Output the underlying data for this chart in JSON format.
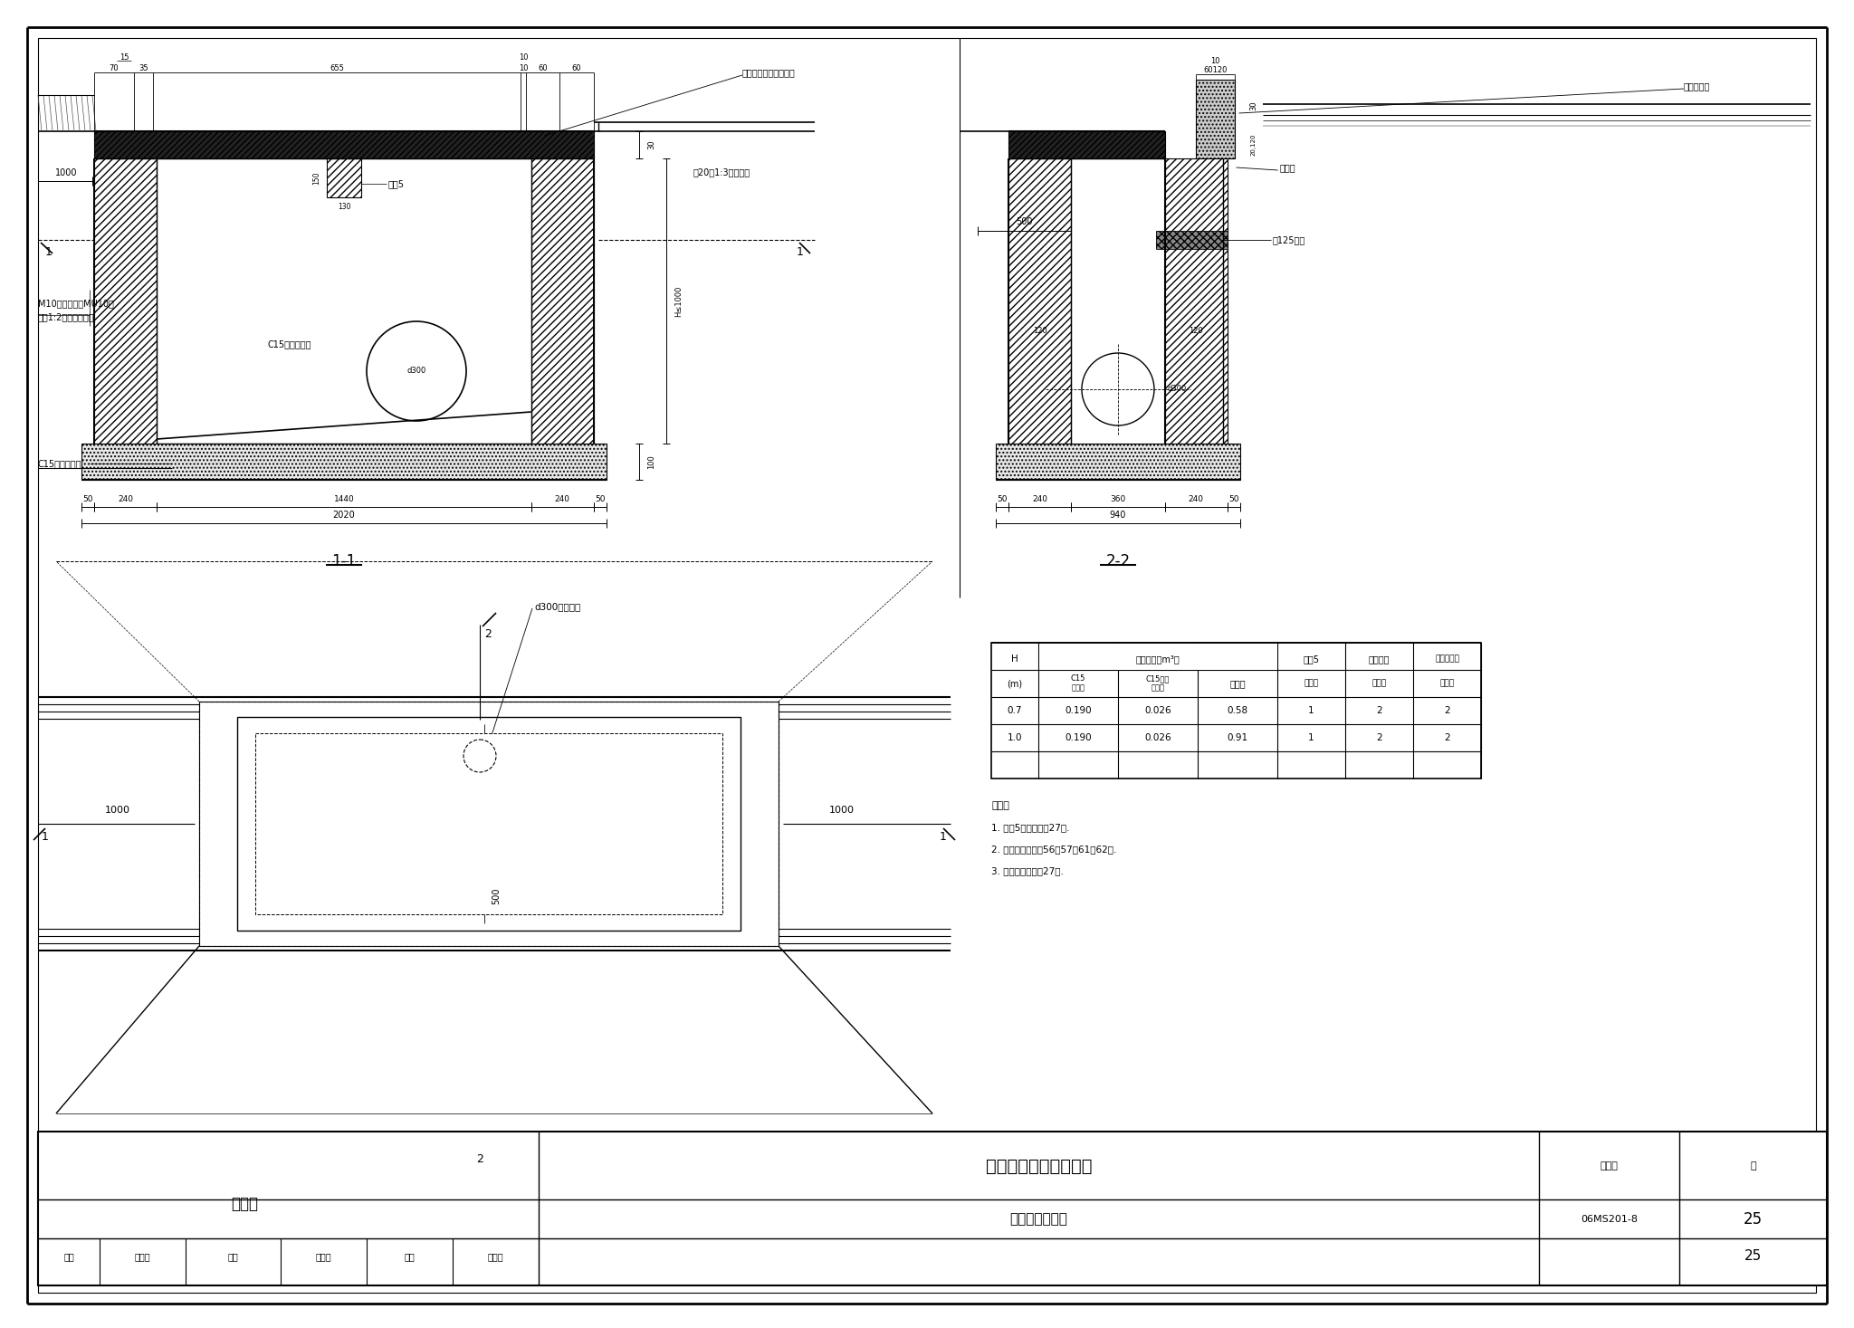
{
  "title": "砖砌偏沟式双算雨水口",
  "subtitle": "（混凝土井圈）",
  "figure_number": "06MS201-8",
  "page": "25",
  "bg_color": "#ffffff",
  "notes": [
    "说明：",
    "1. 过梁5见本图集第27页.",
    "2. 算子见本图集第56、57、61、62页.",
    "3. 井圈见本图集第27页."
  ],
  "table_data": [
    [
      "0.7",
      "0.190",
      "0.026",
      "0.58",
      "1",
      "2",
      "2"
    ],
    [
      "1.0",
      "0.190",
      "0.026",
      "0.91",
      "1",
      "2",
      "2"
    ]
  ],
  "bottom_labels": [
    "审核",
    "王懦山",
    "校对",
    "盛奕节",
    "设计",
    "温丽晖"
  ]
}
